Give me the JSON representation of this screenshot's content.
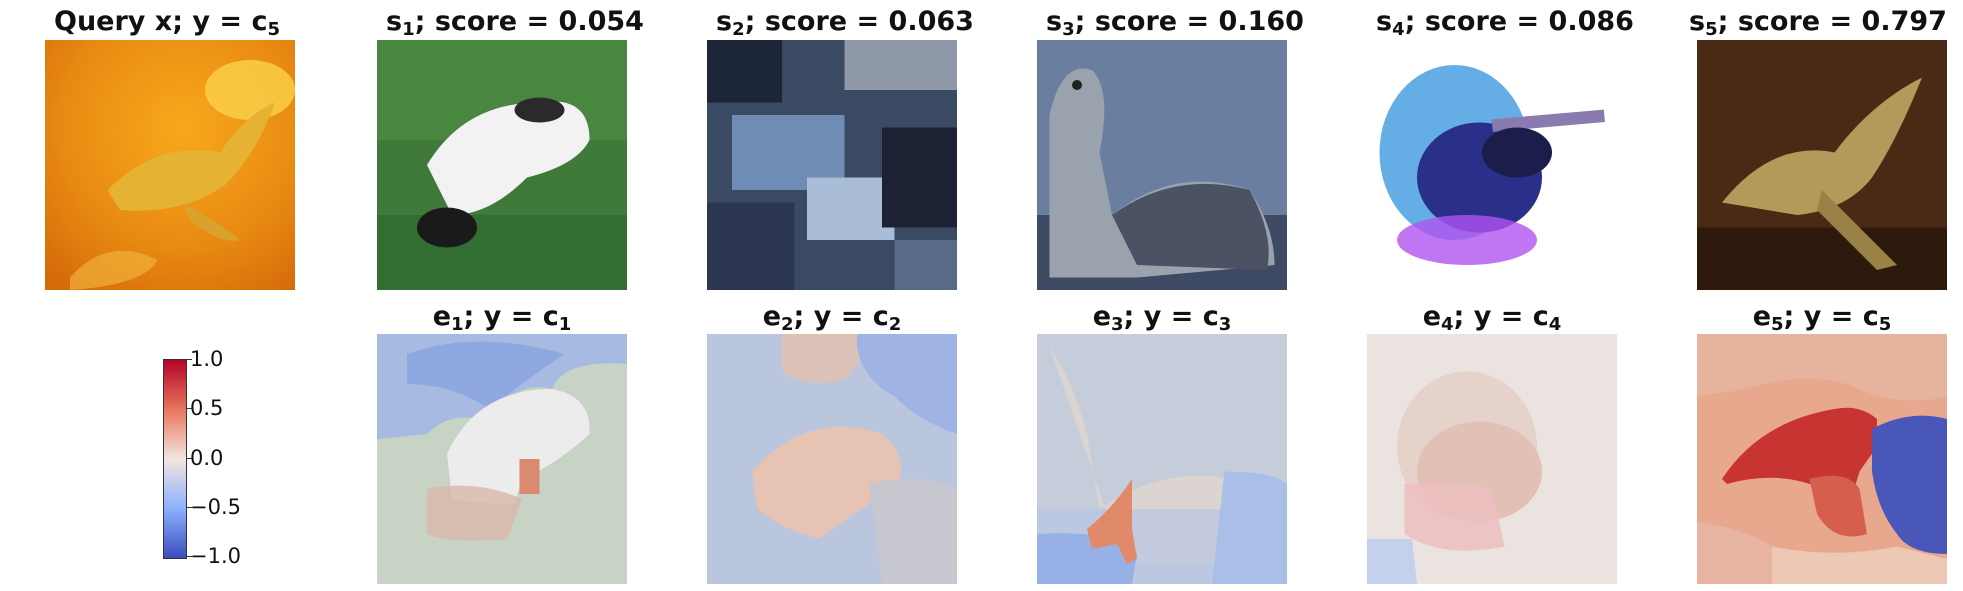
{
  "top_row": [
    {
      "prefix": "Query x; y = c",
      "sub": "5",
      "suffix": ""
    },
    {
      "prefix": "s",
      "sub": "1",
      "suffix": "; score = 0.054"
    },
    {
      "prefix": "s",
      "sub": "2",
      "suffix": "; score = 0.063"
    },
    {
      "prefix": "s",
      "sub": "3",
      "suffix": "; score = 0.160"
    },
    {
      "prefix": "s",
      "sub": "4",
      "suffix": "; score = 0.086"
    },
    {
      "prefix": "s",
      "sub": "5",
      "suffix": "; score = 0.797"
    }
  ],
  "bottom_row": [
    {
      "e": "e",
      "esub": "1",
      "mid": "; y = c",
      "csub": "1"
    },
    {
      "e": "e",
      "esub": "2",
      "mid": "; y = c",
      "csub": "2"
    },
    {
      "e": "e",
      "esub": "3",
      "mid": "; y = c",
      "csub": "3"
    },
    {
      "e": "e",
      "esub": "4",
      "mid": "; y = c",
      "csub": "4"
    },
    {
      "e": "e",
      "esub": "5",
      "mid": "; y = c",
      "csub": "5"
    }
  ],
  "colorbar": {
    "ticks": [
      "1.0",
      "0.5",
      "0.0",
      "−0.5",
      "−1.0"
    ],
    "colors": {
      "high": "#b40426",
      "mid": "#f2e6df",
      "low": "#3b4cc0"
    }
  }
}
